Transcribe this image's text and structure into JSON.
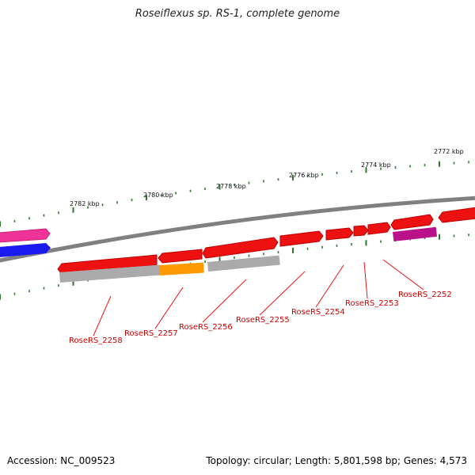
{
  "title": "Roseiflexus sp. RS-1, complete genome",
  "footer": {
    "accession": "Accession: NC_009523",
    "summary": "Topology: circular; Length: 5,801,598 bp; Genes: 4,573"
  },
  "scale_labels": [
    "2782 kbp",
    "2780 kbp",
    "2778 kbp",
    "2776 kbp",
    "2774 kbp",
    "2772 kbp"
  ],
  "gene_labels": [
    "RoseRS_2258",
    "RoseRS_2257",
    "RoseRS_2256",
    "RoseRS_2255",
    "RoseRS_2254",
    "RoseRS_2253",
    "RoseRS_2252"
  ],
  "colors": {
    "red": "#ee1111",
    "pink": "#ee3399",
    "blue": "#1a1aee",
    "magenta": "#bb1188",
    "orange": "#ff9900",
    "gray": "#aaaaaa",
    "backbone": "#808080",
    "tick": "#2a7a2a",
    "label": "#cc0000"
  }
}
